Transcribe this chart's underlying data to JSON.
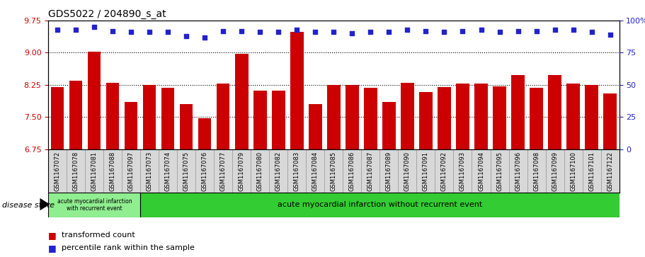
{
  "title": "GDS5022 / 204890_s_at",
  "samples": [
    "GSM1167072",
    "GSM1167078",
    "GSM1167081",
    "GSM1167088",
    "GSM1167097",
    "GSM1167073",
    "GSM1167074",
    "GSM1167075",
    "GSM1167076",
    "GSM1167077",
    "GSM1167079",
    "GSM1167080",
    "GSM1167082",
    "GSM1167083",
    "GSM1167084",
    "GSM1167085",
    "GSM1167086",
    "GSM1167087",
    "GSM1167089",
    "GSM1167090",
    "GSM1167091",
    "GSM1167092",
    "GSM1167093",
    "GSM1167094",
    "GSM1167095",
    "GSM1167096",
    "GSM1167098",
    "GSM1167099",
    "GSM1167100",
    "GSM1167101",
    "GSM1167122"
  ],
  "bar_values": [
    8.2,
    8.35,
    9.02,
    8.3,
    7.85,
    8.25,
    8.18,
    7.8,
    7.47,
    8.28,
    8.97,
    8.12,
    8.12,
    9.48,
    7.8,
    8.25,
    8.25,
    8.18,
    7.85,
    8.3,
    8.08,
    8.2,
    8.28,
    8.28,
    8.22,
    8.48,
    8.18,
    8.48,
    8.28,
    8.25,
    8.05
  ],
  "percentile_values": [
    93,
    93,
    95,
    92,
    91,
    91,
    91,
    88,
    87,
    92,
    92,
    91,
    91,
    93,
    91,
    91,
    90,
    91,
    91,
    93,
    92,
    91,
    92,
    93,
    91,
    92,
    92,
    93,
    93,
    91,
    89
  ],
  "bar_color": "#cc0000",
  "dot_color": "#2222cc",
  "ylim_left": [
    6.75,
    9.75
  ],
  "ylim_right": [
    0,
    100
  ],
  "yticks_left": [
    6.75,
    7.5,
    8.25,
    9.0,
    9.75
  ],
  "yticks_right": [
    0,
    25,
    50,
    75,
    100
  ],
  "group1_label": "acute myocardial infarction\nwith recurrent event",
  "group1_count": 5,
  "group2_label": "acute myocardial infarction without recurrent event",
  "disease_state_label": "disease state",
  "legend_bar_label": "transformed count",
  "legend_dot_label": "percentile rank within the sample",
  "bg_color": "#d8d8d8",
  "group1_color": "#90ee90",
  "group2_color": "#33cc33"
}
